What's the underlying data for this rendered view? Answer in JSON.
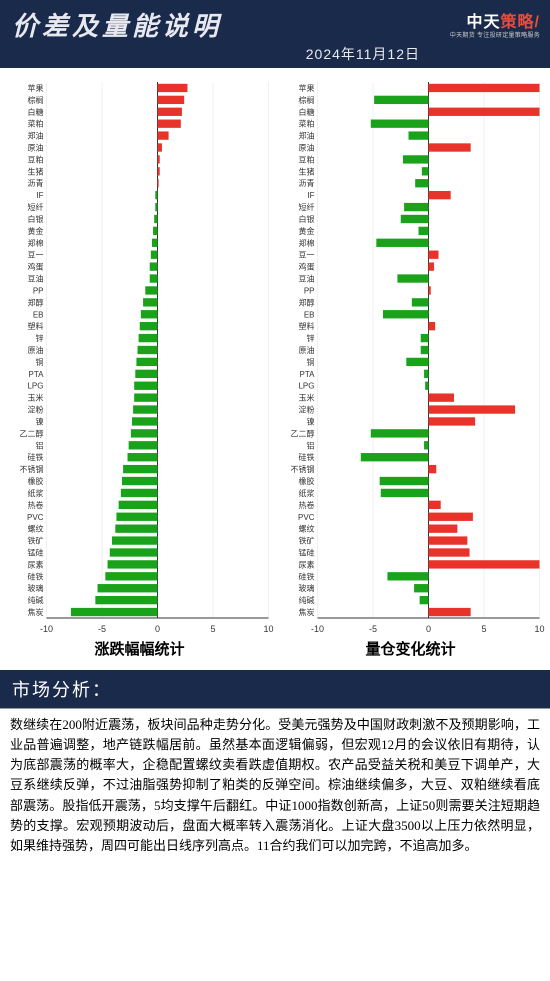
{
  "header": {
    "title": "价差及量能说明",
    "date": "2024年11月12日",
    "logo_main": "中天",
    "logo_accent": "策略",
    "logo_mark": "/",
    "logo_sub": "中天期货  专注投研定量策略服务"
  },
  "chart_common": {
    "xlim": [
      -10,
      10
    ],
    "xticks": [
      -10,
      -5,
      0,
      5,
      10
    ],
    "bar_height": 0.7,
    "pos_color": "#e8332a",
    "neg_color": "#1aa31a",
    "label_fontsize": 8,
    "tick_fontsize": 9,
    "title_fontsize": 15,
    "grid_color": "#e0e0e0",
    "axis_color": "#333333",
    "background_color": "#ffffff"
  },
  "labels": [
    "苹果",
    "棕榈",
    "白糖",
    "菜粕",
    "郑油",
    "原油",
    "豆粕",
    "生猪",
    "沥青",
    "IF",
    "短纤",
    "白银",
    "黄金",
    "郑棉",
    "豆一",
    "鸡蛋",
    "豆油",
    "PP",
    "郑醇",
    "EB",
    "塑料",
    "锌",
    "原油",
    "铜",
    "PTA",
    "LPG",
    "玉米",
    "淀粉",
    "镍",
    "乙二醇",
    "铝",
    "硅铁",
    "不锈钢",
    "橡胶",
    "纸浆",
    "热卷",
    "PVC",
    "螺纹",
    "铁矿",
    "锰硅",
    "尿素",
    "硅铁",
    "玻璃",
    "纯碱",
    "焦炭"
  ],
  "left_chart": {
    "title": "涨跌幅幅统计",
    "values": [
      2.7,
      2.4,
      2.2,
      2.1,
      1.0,
      0.4,
      0.2,
      0.2,
      0.1,
      -0.2,
      -0.2,
      -0.3,
      -0.4,
      -0.5,
      -0.6,
      -0.7,
      -0.7,
      -1.1,
      -1.3,
      -1.5,
      -1.6,
      -1.7,
      -1.8,
      -1.9,
      -2.0,
      -2.1,
      -2.1,
      -2.2,
      -2.3,
      -2.4,
      -2.6,
      -2.7,
      -3.1,
      -3.2,
      -3.3,
      -3.5,
      -3.7,
      -3.8,
      -4.1,
      -4.3,
      -4.5,
      -4.7,
      -5.4,
      -5.6,
      -7.8
    ]
  },
  "right_chart": {
    "title": "量仓变化统计",
    "values": [
      10.0,
      -4.9,
      10.0,
      -5.2,
      -1.8,
      3.8,
      -2.3,
      -0.6,
      -1.2,
      2.0,
      -2.2,
      -2.5,
      -0.9,
      -4.7,
      0.9,
      0.5,
      -2.8,
      0.2,
      -1.5,
      -4.1,
      0.6,
      -0.7,
      -0.7,
      -2.0,
      -0.4,
      -0.3,
      2.3,
      7.8,
      4.2,
      -5.2,
      -0.4,
      -6.1,
      0.7,
      -4.4,
      -4.3,
      1.1,
      4.0,
      2.6,
      3.5,
      3.7,
      10.0,
      -3.7,
      -1.3,
      -0.8,
      3.8
    ]
  },
  "analysis": {
    "section_title": "市场分析：",
    "body": "数继续在200附近震荡，板块间品种走势分化。受美元强势及中国财政刺激不及预期影响，工业品普遍调整，地产链跌幅居前。虽然基本面逻辑偏弱，但宏观12月的会议依旧有期待，认为底部震荡的概率大，企稳配置螺纹卖看跌虚值期权。农产品受益关税和美豆下调单产，大豆系继续反弹，不过油脂强势抑制了粕类的反弹空间。棕油继续偏多，大豆、双粕继续看底部震荡。股指低开震荡，5均支撑午后翻红。中证1000指数创新高，上证50则需要关注短期趋势的支撑。宏观预期波动后，盘面大概率转入震荡消化。上证大盘3500以上压力依然明显，如果维持强势，周四可能出日线序列高点。11合约我们可以加完跨，不追高加多。"
  }
}
